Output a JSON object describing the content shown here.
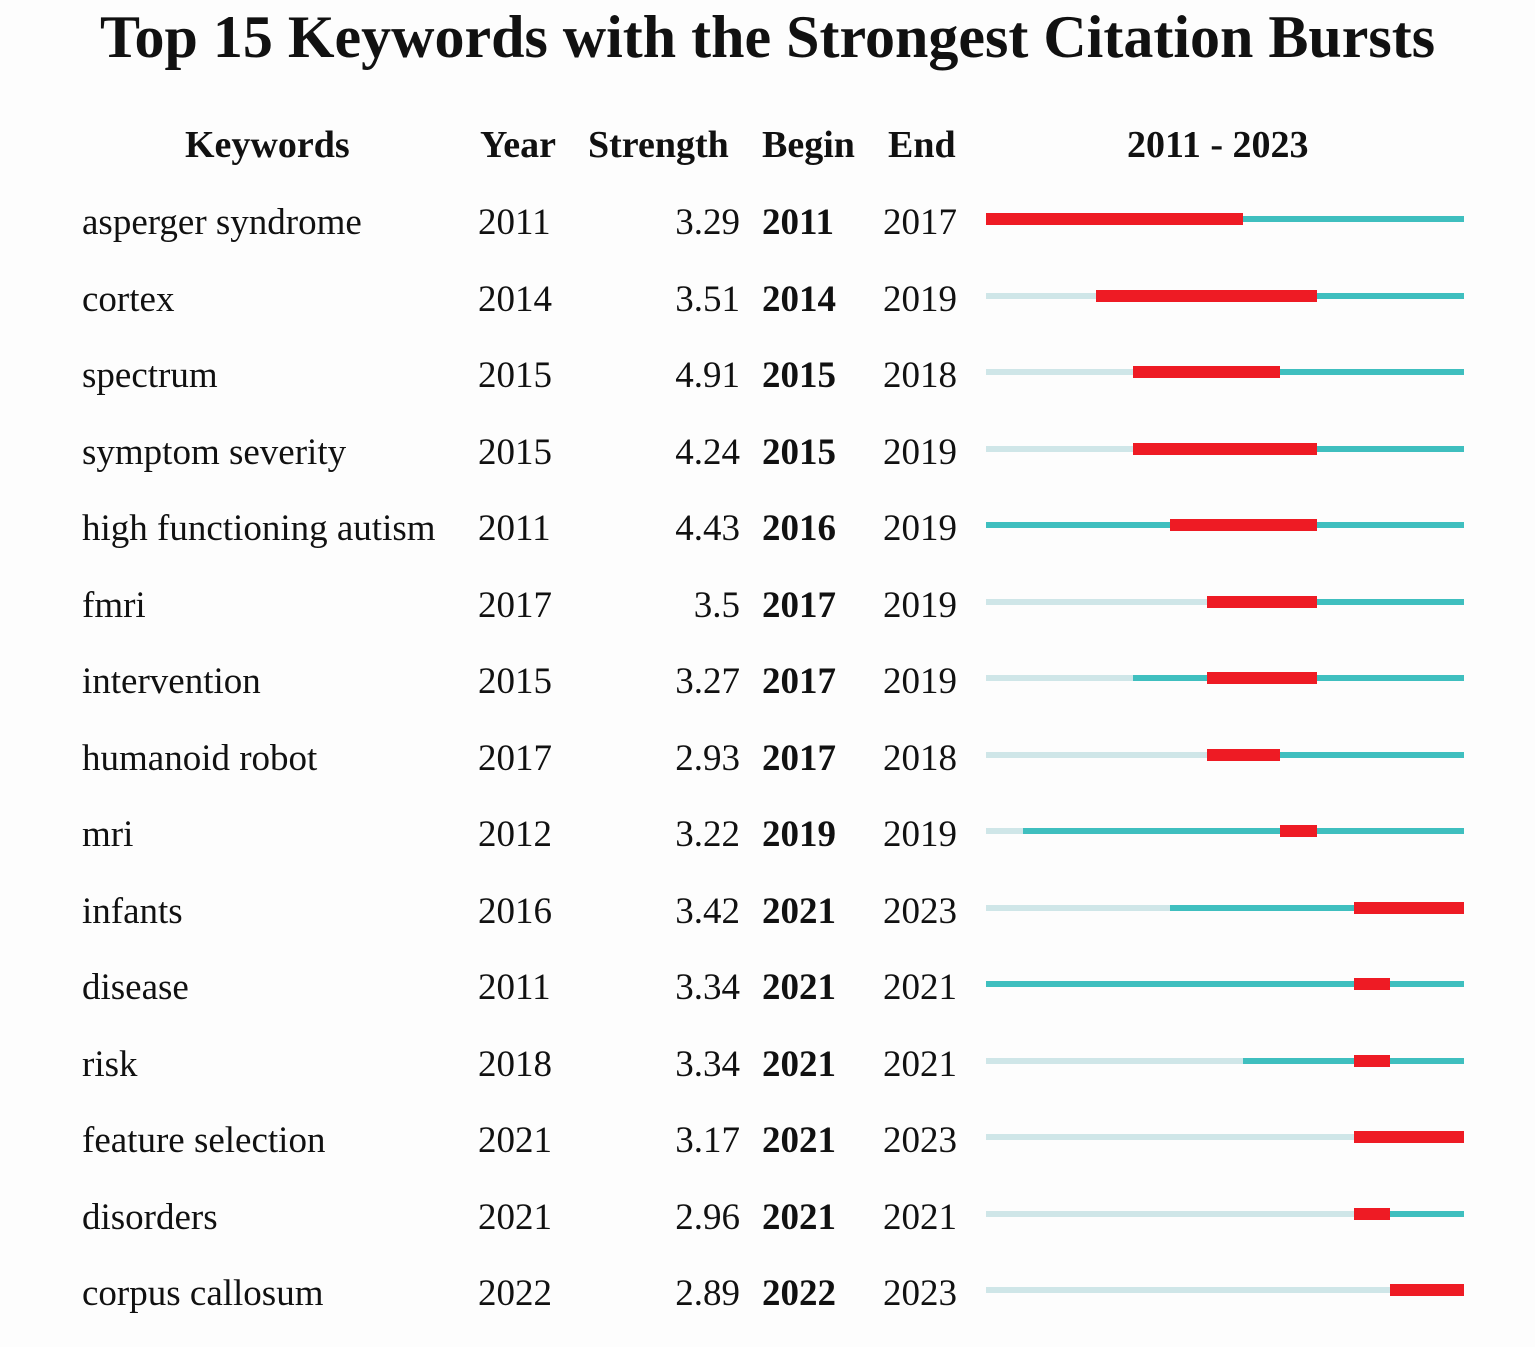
{
  "title": "Top 15 Keywords with the Strongest Citation Bursts",
  "headers": {
    "keywords": "Keywords",
    "year": "Year",
    "strength": "Strength",
    "begin": "Begin",
    "end": "End",
    "range": "2011 - 2023"
  },
  "colors": {
    "burst": "#ee1b24",
    "active": "#3fbfbf",
    "inactive": "#cfe6e8"
  },
  "chart_data": {
    "type": "table",
    "title": "Top 15 Keywords with the Strongest Citation Bursts",
    "timeline": [
      2011,
      2023
    ],
    "rows": [
      {
        "keyword": "asperger syndrome",
        "year": "2011",
        "strength": "3.29",
        "begin": "2011",
        "end": "2017"
      },
      {
        "keyword": "cortex",
        "year": "2014",
        "strength": "3.51",
        "begin": "2014",
        "end": "2019"
      },
      {
        "keyword": "spectrum",
        "year": "2015",
        "strength": "4.91",
        "begin": "2015",
        "end": "2018"
      },
      {
        "keyword": "symptom severity",
        "year": "2015",
        "strength": "4.24",
        "begin": "2015",
        "end": "2019"
      },
      {
        "keyword": "high functioning autism",
        "year": "2011",
        "strength": "4.43",
        "begin": "2016",
        "end": "2019"
      },
      {
        "keyword": "fmri",
        "year": "2017",
        "strength": "3.5",
        "begin": "2017",
        "end": "2019"
      },
      {
        "keyword": "intervention",
        "year": "2015",
        "strength": "3.27",
        "begin": "2017",
        "end": "2019"
      },
      {
        "keyword": "humanoid robot",
        "year": "2017",
        "strength": "2.93",
        "begin": "2017",
        "end": "2018"
      },
      {
        "keyword": "mri",
        "year": "2012",
        "strength": "3.22",
        "begin": "2019",
        "end": "2019"
      },
      {
        "keyword": "infants",
        "year": "2016",
        "strength": "3.42",
        "begin": "2021",
        "end": "2023"
      },
      {
        "keyword": "disease",
        "year": "2011",
        "strength": "3.34",
        "begin": "2021",
        "end": "2021"
      },
      {
        "keyword": "risk",
        "year": "2018",
        "strength": "3.34",
        "begin": "2021",
        "end": "2021"
      },
      {
        "keyword": "feature selection",
        "year": "2021",
        "strength": "3.17",
        "begin": "2021",
        "end": "2023"
      },
      {
        "keyword": "disorders",
        "year": "2021",
        "strength": "2.96",
        "begin": "2021",
        "end": "2021"
      },
      {
        "keyword": "corpus callosum",
        "year": "2022",
        "strength": "2.89",
        "begin": "2022",
        "end": "2023"
      }
    ]
  }
}
